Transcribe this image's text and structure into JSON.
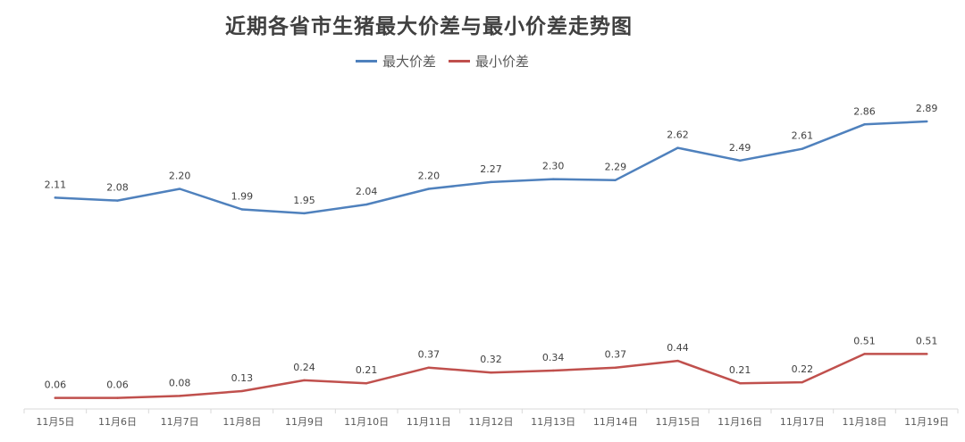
{
  "title": "近期各省市生猪最大价差与最小价差走势图",
  "chart_data": {
    "type": "line",
    "title": "近期各省市生猪最大价差与最小价差走势图",
    "categories": [
      "11月5日",
      "11月6日",
      "11月7日",
      "11月8日",
      "11月9日",
      "11月10日",
      "11月11日",
      "11月12日",
      "11月13日",
      "11月14日",
      "11月15日",
      "11月16日",
      "11月17日",
      "11月18日",
      "11月19日"
    ],
    "series": [
      {
        "name": "最大价差",
        "color": "#4f81bd",
        "values": [
          2.11,
          2.08,
          2.2,
          1.99,
          1.95,
          2.04,
          2.2,
          2.27,
          2.3,
          2.29,
          2.62,
          2.49,
          2.61,
          2.86,
          2.89
        ],
        "labels": [
          "2.11",
          "2.08",
          "2.20",
          "1.99",
          "1.95",
          "2.04",
          "2.20",
          "2.27",
          "2.30",
          "2.29",
          "2.62",
          "2.49",
          "2.61",
          "2.86",
          "2.89"
        ]
      },
      {
        "name": "最小价差",
        "color": "#c0504d",
        "values": [
          0.06,
          0.06,
          0.08,
          0.13,
          0.24,
          0.21,
          0.37,
          0.32,
          0.34,
          0.37,
          0.44,
          0.21,
          0.22,
          0.51,
          0.51
        ],
        "labels": [
          "0.06",
          "0.06",
          "0.08",
          "0.13",
          "0.24",
          "0.21",
          "0.37",
          "0.32",
          "0.34",
          "0.37",
          "0.44",
          "0.21",
          "0.22",
          "0.51",
          "0.51"
        ]
      }
    ],
    "legend": "top-center",
    "grid": false,
    "axis_color": "#d9d9d9"
  }
}
